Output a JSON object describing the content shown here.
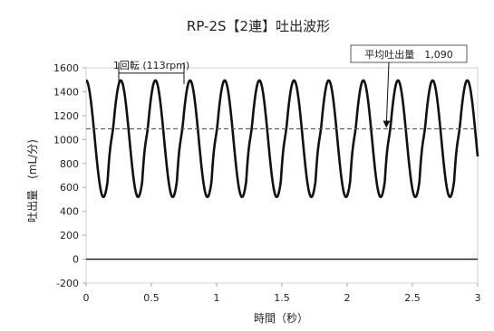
{
  "chart_data": {
    "type": "line",
    "title": "RP-2S【2連】吐出波形",
    "xlabel": "時間（秒）",
    "ylabel": "吐出量　(mL/分)",
    "xlim": [
      0,
      3
    ],
    "ylim": [
      -200,
      1600
    ],
    "xticks": [
      0,
      0.5,
      1,
      1.5,
      2,
      2.5,
      3
    ],
    "xtick_labels": [
      "0",
      "0.5",
      "1",
      "1.5",
      "2",
      "2.5",
      "3"
    ],
    "yticks": [
      -200,
      0,
      200,
      400,
      600,
      800,
      1000,
      1200,
      1400,
      1600
    ],
    "ytick_labels": [
      "-200",
      "0",
      "200",
      "400",
      "600",
      "800",
      "1000",
      "1200",
      "1400",
      "1600"
    ],
    "grid": false,
    "series": [
      {
        "color": "#111111",
        "style": "solid",
        "waveform": {
          "period_s": 0.2655,
          "phase_peak_s": 0.0,
          "max": 1495,
          "min": 520,
          "shoulder_level": 1100
        }
      },
      {
        "color": "#555555",
        "style": "dashed",
        "constant": 1090
      }
    ],
    "zero_line": 0,
    "annotations": [
      {
        "text": "1回転 (113rpm)",
        "span_x": [
          0.25,
          0.75
        ],
        "span_y": 1510
      },
      {
        "text": "平均吐出量　1,090",
        "arrow_to": [
          2.3,
          1090
        ]
      }
    ]
  }
}
